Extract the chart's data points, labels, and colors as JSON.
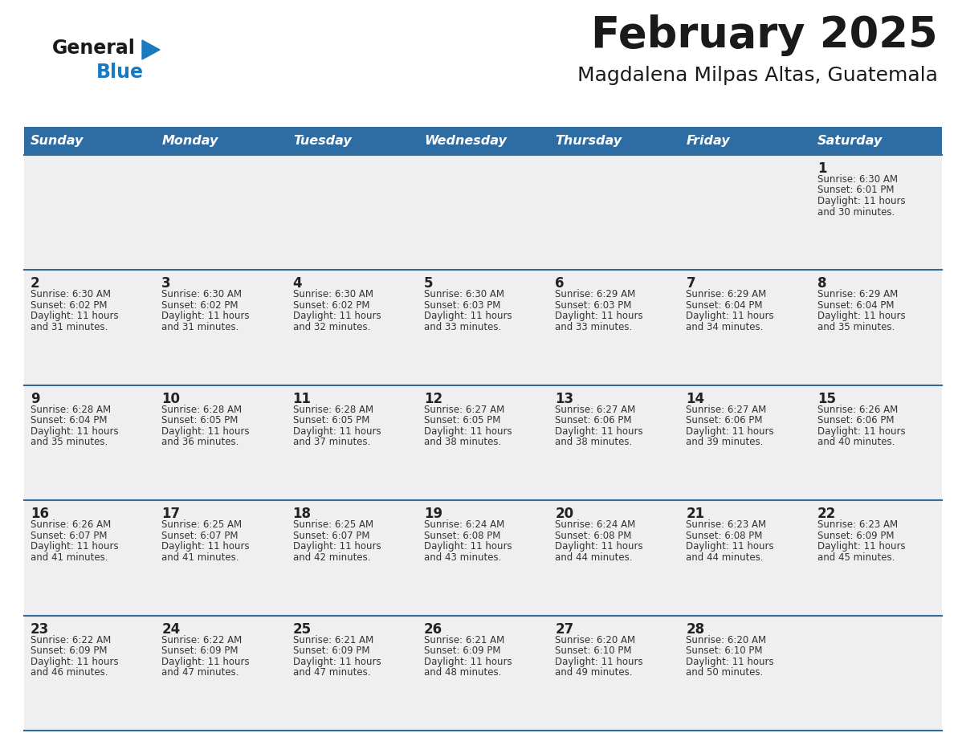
{
  "title": "February 2025",
  "subtitle": "Magdalena Milpas Altas, Guatemala",
  "title_color": "#1a1a1a",
  "subtitle_color": "#1a1a1a",
  "header_bg": "#2e6da4",
  "header_text_color": "#ffffff",
  "row_bg": "#efefef",
  "grid_line_color": "#2e6da4",
  "text_color": "#333333",
  "day_num_color": "#222222",
  "day_headers": [
    "Sunday",
    "Monday",
    "Tuesday",
    "Wednesday",
    "Thursday",
    "Friday",
    "Saturday"
  ],
  "logo_general_color": "#1a1a1a",
  "logo_blue_color": "#1a7abf",
  "calendar_data": [
    {
      "day": 1,
      "col": 6,
      "row": 0,
      "sunrise": "6:30 AM",
      "sunset": "6:01 PM",
      "daylight_hours": 11,
      "daylight_minutes": 30
    },
    {
      "day": 2,
      "col": 0,
      "row": 1,
      "sunrise": "6:30 AM",
      "sunset": "6:02 PM",
      "daylight_hours": 11,
      "daylight_minutes": 31
    },
    {
      "day": 3,
      "col": 1,
      "row": 1,
      "sunrise": "6:30 AM",
      "sunset": "6:02 PM",
      "daylight_hours": 11,
      "daylight_minutes": 31
    },
    {
      "day": 4,
      "col": 2,
      "row": 1,
      "sunrise": "6:30 AM",
      "sunset": "6:02 PM",
      "daylight_hours": 11,
      "daylight_minutes": 32
    },
    {
      "day": 5,
      "col": 3,
      "row": 1,
      "sunrise": "6:30 AM",
      "sunset": "6:03 PM",
      "daylight_hours": 11,
      "daylight_minutes": 33
    },
    {
      "day": 6,
      "col": 4,
      "row": 1,
      "sunrise": "6:29 AM",
      "sunset": "6:03 PM",
      "daylight_hours": 11,
      "daylight_minutes": 33
    },
    {
      "day": 7,
      "col": 5,
      "row": 1,
      "sunrise": "6:29 AM",
      "sunset": "6:04 PM",
      "daylight_hours": 11,
      "daylight_minutes": 34
    },
    {
      "day": 8,
      "col": 6,
      "row": 1,
      "sunrise": "6:29 AM",
      "sunset": "6:04 PM",
      "daylight_hours": 11,
      "daylight_minutes": 35
    },
    {
      "day": 9,
      "col": 0,
      "row": 2,
      "sunrise": "6:28 AM",
      "sunset": "6:04 PM",
      "daylight_hours": 11,
      "daylight_minutes": 35
    },
    {
      "day": 10,
      "col": 1,
      "row": 2,
      "sunrise": "6:28 AM",
      "sunset": "6:05 PM",
      "daylight_hours": 11,
      "daylight_minutes": 36
    },
    {
      "day": 11,
      "col": 2,
      "row": 2,
      "sunrise": "6:28 AM",
      "sunset": "6:05 PM",
      "daylight_hours": 11,
      "daylight_minutes": 37
    },
    {
      "day": 12,
      "col": 3,
      "row": 2,
      "sunrise": "6:27 AM",
      "sunset": "6:05 PM",
      "daylight_hours": 11,
      "daylight_minutes": 38
    },
    {
      "day": 13,
      "col": 4,
      "row": 2,
      "sunrise": "6:27 AM",
      "sunset": "6:06 PM",
      "daylight_hours": 11,
      "daylight_minutes": 38
    },
    {
      "day": 14,
      "col": 5,
      "row": 2,
      "sunrise": "6:27 AM",
      "sunset": "6:06 PM",
      "daylight_hours": 11,
      "daylight_minutes": 39
    },
    {
      "day": 15,
      "col": 6,
      "row": 2,
      "sunrise": "6:26 AM",
      "sunset": "6:06 PM",
      "daylight_hours": 11,
      "daylight_minutes": 40
    },
    {
      "day": 16,
      "col": 0,
      "row": 3,
      "sunrise": "6:26 AM",
      "sunset": "6:07 PM",
      "daylight_hours": 11,
      "daylight_minutes": 41
    },
    {
      "day": 17,
      "col": 1,
      "row": 3,
      "sunrise": "6:25 AM",
      "sunset": "6:07 PM",
      "daylight_hours": 11,
      "daylight_minutes": 41
    },
    {
      "day": 18,
      "col": 2,
      "row": 3,
      "sunrise": "6:25 AM",
      "sunset": "6:07 PM",
      "daylight_hours": 11,
      "daylight_minutes": 42
    },
    {
      "day": 19,
      "col": 3,
      "row": 3,
      "sunrise": "6:24 AM",
      "sunset": "6:08 PM",
      "daylight_hours": 11,
      "daylight_minutes": 43
    },
    {
      "day": 20,
      "col": 4,
      "row": 3,
      "sunrise": "6:24 AM",
      "sunset": "6:08 PM",
      "daylight_hours": 11,
      "daylight_minutes": 44
    },
    {
      "day": 21,
      "col": 5,
      "row": 3,
      "sunrise": "6:23 AM",
      "sunset": "6:08 PM",
      "daylight_hours": 11,
      "daylight_minutes": 44
    },
    {
      "day": 22,
      "col": 6,
      "row": 3,
      "sunrise": "6:23 AM",
      "sunset": "6:09 PM",
      "daylight_hours": 11,
      "daylight_minutes": 45
    },
    {
      "day": 23,
      "col": 0,
      "row": 4,
      "sunrise": "6:22 AM",
      "sunset": "6:09 PM",
      "daylight_hours": 11,
      "daylight_minutes": 46
    },
    {
      "day": 24,
      "col": 1,
      "row": 4,
      "sunrise": "6:22 AM",
      "sunset": "6:09 PM",
      "daylight_hours": 11,
      "daylight_minutes": 47
    },
    {
      "day": 25,
      "col": 2,
      "row": 4,
      "sunrise": "6:21 AM",
      "sunset": "6:09 PM",
      "daylight_hours": 11,
      "daylight_minutes": 47
    },
    {
      "day": 26,
      "col": 3,
      "row": 4,
      "sunrise": "6:21 AM",
      "sunset": "6:09 PM",
      "daylight_hours": 11,
      "daylight_minutes": 48
    },
    {
      "day": 27,
      "col": 4,
      "row": 4,
      "sunrise": "6:20 AM",
      "sunset": "6:10 PM",
      "daylight_hours": 11,
      "daylight_minutes": 49
    },
    {
      "day": 28,
      "col": 5,
      "row": 4,
      "sunrise": "6:20 AM",
      "sunset": "6:10 PM",
      "daylight_hours": 11,
      "daylight_minutes": 50
    }
  ]
}
